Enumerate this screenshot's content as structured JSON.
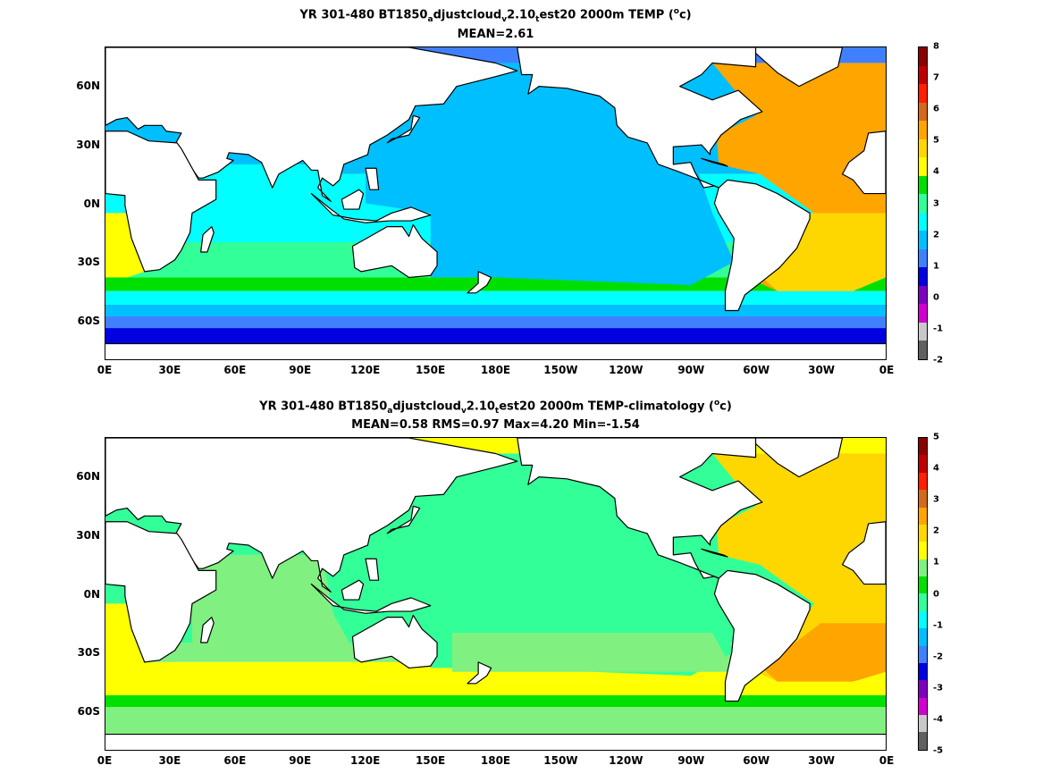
{
  "panels": [
    {
      "title_main": "YR 301-480 BT1850",
      "title_sub1": "a",
      "title_mid1": "djustcloud",
      "title_sub2": "v",
      "title_mid2": "2.10",
      "title_sub3": "t",
      "title_mid3": "est20 2000m TEMP (",
      "title_sup": "o",
      "title_end": "c)",
      "subtitle": "MEAN=2.61",
      "colorbar": {
        "labels": [
          "8",
          "7",
          "6",
          "5",
          "4",
          "3",
          "2",
          "1",
          "0",
          "-1",
          "-2"
        ],
        "colors": [
          "#8b0000",
          "#c00000",
          "#ff2000",
          "#d2691e",
          "#ffa500",
          "#ffd700",
          "#ffff00",
          "#00e000",
          "#33ff99",
          "#00ffff",
          "#00bfff",
          "#4080ff",
          "#0000e0",
          "#8000c0",
          "#d000d0",
          "#c8c8c8",
          "#606060"
        ]
      }
    },
    {
      "title_main": "YR 301-480 BT1850",
      "title_sub1": "a",
      "title_mid1": "djustcloud",
      "title_sub2": "v",
      "title_mid2": "2.10",
      "title_sub3": "t",
      "title_mid3": "est20 2000m TEMP-climatology (",
      "title_sup": "o",
      "title_end": "c)",
      "subtitle": "MEAN=0.58   RMS=0.97   Max=4.20   Min=-1.54",
      "colorbar": {
        "labels": [
          "5",
          "4",
          "3",
          "2",
          "1",
          "0",
          "-1",
          "-2",
          "-3",
          "-4",
          "-5"
        ],
        "colors": [
          "#8b0000",
          "#c00000",
          "#ff2000",
          "#d2691e",
          "#ffa500",
          "#ffd700",
          "#ffff00",
          "#80f080",
          "#00e000",
          "#33ff99",
          "#00ffff",
          "#00bfff",
          "#4080ff",
          "#0000e0",
          "#8000c0",
          "#d000d0",
          "#c8c8c8",
          "#606060"
        ]
      }
    }
  ],
  "chart_data": [
    {
      "type": "heatmap",
      "title": "YR 301-480 BT1850adjustcloudv2.10test20 2000m TEMP (oc)",
      "subtitle": "MEAN=2.61",
      "x_tick_labels": [
        "0E",
        "30E",
        "60E",
        "90E",
        "120E",
        "150E",
        "180E",
        "150W",
        "120W",
        "90W",
        "60W",
        "30W",
        "0E"
      ],
      "y_tick_labels": [
        "60N",
        "30N",
        "0N",
        "30S",
        "60S"
      ],
      "x_range": [
        0,
        360
      ],
      "y_range": [
        -80,
        80
      ],
      "colorbar_range": [
        -2,
        8
      ],
      "mean": 2.61
    },
    {
      "type": "heatmap",
      "title": "YR 301-480 BT1850adjustcloudv2.10test20 2000m TEMP-climatology (oc)",
      "subtitle": "MEAN=0.58   RMS=0.97   Max=4.20   Min=-1.54",
      "x_tick_labels": [
        "0E",
        "30E",
        "60E",
        "90E",
        "120E",
        "150E",
        "180E",
        "150W",
        "120W",
        "90W",
        "60W",
        "30W",
        "0E"
      ],
      "y_tick_labels": [
        "60N",
        "30N",
        "0N",
        "30S",
        "60S"
      ],
      "x_range": [
        0,
        360
      ],
      "y_range": [
        -80,
        80
      ],
      "colorbar_range": [
        -5,
        5
      ],
      "mean": 0.58,
      "rms": 0.97,
      "max": 4.2,
      "min": -1.54
    }
  ]
}
